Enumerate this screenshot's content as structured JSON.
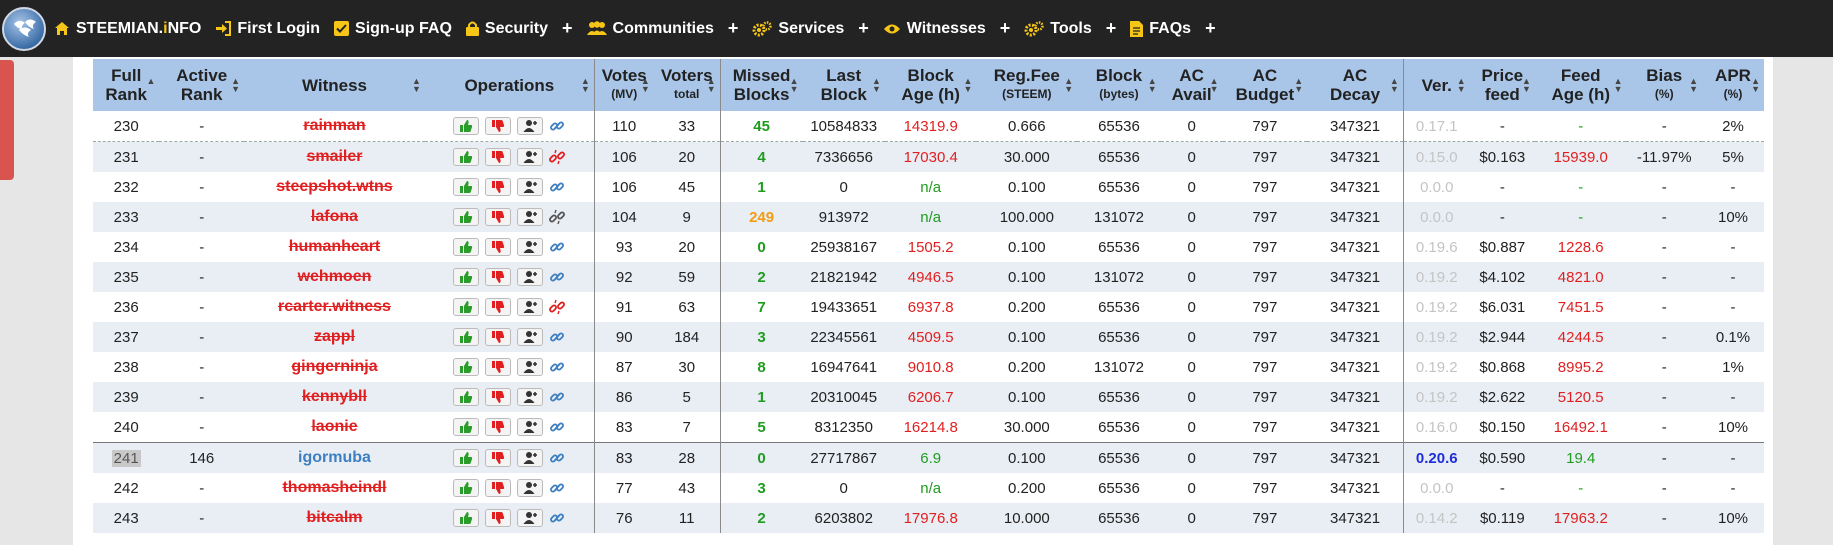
{
  "nav": {
    "brand": {
      "pre": "STEEMIAN.",
      "i": "i",
      "post": "NFO"
    },
    "items": [
      {
        "label": "First Login",
        "icon": "sign-in-icon"
      },
      {
        "label": "Sign-up FAQ",
        "icon": "checkbox-icon"
      },
      {
        "label": "Security",
        "icon": "lock-icon"
      },
      {
        "label": "Communities",
        "icon": "users-icon"
      },
      {
        "label": "Services",
        "icon": "gears-icon"
      },
      {
        "label": "Witnesses",
        "icon": "eye-icon"
      },
      {
        "label": "Tools",
        "icon": "gears-icon"
      },
      {
        "label": "FAQs",
        "icon": "document-icon"
      }
    ],
    "plus": "+"
  },
  "table": {
    "headers": [
      {
        "label": "Full",
        "label2": "Rank",
        "sub": ""
      },
      {
        "label": "Active",
        "label2": "Rank",
        "sub": ""
      },
      {
        "label": "Witness",
        "label2": "",
        "sub": ""
      },
      {
        "label": "Operations",
        "label2": "",
        "sub": ""
      },
      {
        "label": "Votes",
        "label2": "",
        "sub": "(MV)"
      },
      {
        "label": "Voters",
        "label2": "",
        "sub": "total"
      },
      {
        "label": "Missed",
        "label2": "Blocks",
        "sub": ""
      },
      {
        "label": "Last",
        "label2": "Block",
        "sub": ""
      },
      {
        "label": "Block",
        "label2": "Age (h)",
        "sub": ""
      },
      {
        "label": "Reg.Fee",
        "label2": "",
        "sub": "(STEEM)"
      },
      {
        "label": "Block",
        "label2": "",
        "sub": "(bytes)"
      },
      {
        "label": "AC",
        "label2": "Avail",
        "sub": ""
      },
      {
        "label": "AC",
        "label2": "Budget",
        "sub": ""
      },
      {
        "label": "AC",
        "label2": "Decay",
        "sub": ""
      },
      {
        "label": "Ver.",
        "label2": "",
        "sub": ""
      },
      {
        "label": "Price",
        "label2": "feed",
        "sub": ""
      },
      {
        "label": "Feed",
        "label2": "Age (h)",
        "sub": ""
      },
      {
        "label": "Bias",
        "label2": "",
        "sub": "(%)"
      },
      {
        "label": "APR",
        "label2": "",
        "sub": "(%)"
      }
    ],
    "rows": [
      {
        "rank": "230",
        "active": "-",
        "witness": "rainman",
        "link": "ok",
        "votes": "110",
        "voters": "33",
        "missed": "45",
        "missed_c": "green",
        "last": "10584833",
        "age": "14319.9",
        "age_c": "red",
        "fee": "0.666",
        "block": "65536",
        "avail": "0",
        "budget": "797",
        "decay": "347321",
        "ver": "0.17.1",
        "ver_c": "grey",
        "price": "-",
        "feed": "-",
        "feed_c": "green",
        "bias": "-",
        "apr": "2%"
      },
      {
        "rank": "231",
        "active": "-",
        "witness": "smailer",
        "link": "broken",
        "votes": "106",
        "voters": "20",
        "missed": "4",
        "missed_c": "green",
        "last": "7336656",
        "age": "17030.4",
        "age_c": "red",
        "fee": "30.000",
        "block": "65536",
        "avail": "0",
        "budget": "797",
        "decay": "347321",
        "ver": "0.15.0",
        "ver_c": "grey",
        "price": "$0.163",
        "feed": "15939.0",
        "feed_c": "red",
        "bias": "-11.97%",
        "apr": "5%"
      },
      {
        "rank": "232",
        "active": "-",
        "witness": "steepshot.wtns",
        "link": "ok",
        "votes": "106",
        "voters": "45",
        "missed": "1",
        "missed_c": "green",
        "last": "0",
        "age": "n/a",
        "age_c": "green",
        "fee": "0.100",
        "block": "65536",
        "avail": "0",
        "budget": "797",
        "decay": "347321",
        "ver": "0.0.0",
        "ver_c": "grey",
        "price": "-",
        "feed": "-",
        "feed_c": "green",
        "bias": "-",
        "apr": "-"
      },
      {
        "rank": "233",
        "active": "-",
        "witness": "lafona",
        "link": "broken-grey",
        "votes": "104",
        "voters": "9",
        "missed": "249",
        "missed_c": "orange",
        "last": "913972",
        "age": "n/a",
        "age_c": "green",
        "fee": "100.000",
        "block": "131072",
        "avail": "0",
        "budget": "797",
        "decay": "347321",
        "ver": "0.0.0",
        "ver_c": "grey",
        "price": "-",
        "feed": "-",
        "feed_c": "green",
        "bias": "-",
        "apr": "10%"
      },
      {
        "rank": "234",
        "active": "-",
        "witness": "humanheart",
        "link": "ok",
        "votes": "93",
        "voters": "20",
        "missed": "0",
        "missed_c": "green",
        "last": "25938167",
        "age": "1505.2",
        "age_c": "red",
        "fee": "0.100",
        "block": "65536",
        "avail": "0",
        "budget": "797",
        "decay": "347321",
        "ver": "0.19.6",
        "ver_c": "grey",
        "price": "$0.887",
        "feed": "1228.6",
        "feed_c": "red",
        "bias": "-",
        "apr": "-"
      },
      {
        "rank": "235",
        "active": "-",
        "witness": "wehmoen",
        "link": "ok",
        "votes": "92",
        "voters": "59",
        "missed": "2",
        "missed_c": "green",
        "last": "21821942",
        "age": "4946.5",
        "age_c": "red",
        "fee": "0.100",
        "block": "131072",
        "avail": "0",
        "budget": "797",
        "decay": "347321",
        "ver": "0.19.2",
        "ver_c": "grey",
        "price": "$4.102",
        "feed": "4821.0",
        "feed_c": "red",
        "bias": "-",
        "apr": "-"
      },
      {
        "rank": "236",
        "active": "-",
        "witness": "rcarter.witness",
        "link": "broken",
        "votes": "91",
        "voters": "63",
        "missed": "7",
        "missed_c": "green",
        "last": "19433651",
        "age": "6937.8",
        "age_c": "red",
        "fee": "0.200",
        "block": "65536",
        "avail": "0",
        "budget": "797",
        "decay": "347321",
        "ver": "0.19.2",
        "ver_c": "grey",
        "price": "$6.031",
        "feed": "7451.5",
        "feed_c": "red",
        "bias": "-",
        "apr": "-"
      },
      {
        "rank": "237",
        "active": "-",
        "witness": "zappl",
        "link": "ok",
        "votes": "90",
        "voters": "184",
        "missed": "3",
        "missed_c": "green",
        "last": "22345561",
        "age": "4509.5",
        "age_c": "red",
        "fee": "0.100",
        "block": "65536",
        "avail": "0",
        "budget": "797",
        "decay": "347321",
        "ver": "0.19.2",
        "ver_c": "grey",
        "price": "$2.944",
        "feed": "4244.5",
        "feed_c": "red",
        "bias": "-",
        "apr": "0.1%"
      },
      {
        "rank": "238",
        "active": "-",
        "witness": "gingerninja",
        "link": "ok",
        "votes": "87",
        "voters": "30",
        "missed": "8",
        "missed_c": "green",
        "last": "16947641",
        "age": "9010.8",
        "age_c": "red",
        "fee": "0.200",
        "block": "131072",
        "avail": "0",
        "budget": "797",
        "decay": "347321",
        "ver": "0.19.2",
        "ver_c": "grey",
        "price": "$0.868",
        "feed": "8995.2",
        "feed_c": "red",
        "bias": "-",
        "apr": "1%"
      },
      {
        "rank": "239",
        "active": "-",
        "witness": "kennybll",
        "link": "ok",
        "votes": "86",
        "voters": "5",
        "missed": "1",
        "missed_c": "green",
        "last": "20310045",
        "age": "6206.7",
        "age_c": "red",
        "fee": "0.100",
        "block": "65536",
        "avail": "0",
        "budget": "797",
        "decay": "347321",
        "ver": "0.19.2",
        "ver_c": "grey",
        "price": "$2.622",
        "feed": "5120.5",
        "feed_c": "red",
        "bias": "-",
        "apr": "-"
      },
      {
        "rank": "240",
        "active": "-",
        "witness": "laonie",
        "link": "ok",
        "votes": "83",
        "voters": "7",
        "missed": "5",
        "missed_c": "green",
        "last": "8312350",
        "age": "16214.8",
        "age_c": "red",
        "fee": "30.000",
        "block": "65536",
        "avail": "0",
        "budget": "797",
        "decay": "347321",
        "ver": "0.16.0",
        "ver_c": "grey",
        "price": "$0.150",
        "feed": "16492.1",
        "feed_c": "red",
        "bias": "-",
        "apr": "10%"
      },
      {
        "rank": "241",
        "active": "146",
        "witness": "igormuba",
        "link": "ok",
        "votes": "83",
        "voters": "28",
        "missed": "0",
        "missed_c": "green",
        "last": "27717867",
        "age": "6.9",
        "age_c": "green",
        "fee": "0.100",
        "block": "65536",
        "avail": "0",
        "budget": "797",
        "decay": "347321",
        "ver": "0.20.6",
        "ver_c": "blue",
        "price": "$0.590",
        "feed": "19.4",
        "feed_c": "green",
        "bias": "-",
        "apr": "-",
        "is_active": true
      },
      {
        "rank": "242",
        "active": "-",
        "witness": "thomasheindl",
        "link": "ok",
        "votes": "77",
        "voters": "43",
        "missed": "3",
        "missed_c": "green",
        "last": "0",
        "age": "n/a",
        "age_c": "green",
        "fee": "0.200",
        "block": "65536",
        "avail": "0",
        "budget": "797",
        "decay": "347321",
        "ver": "0.0.0",
        "ver_c": "grey",
        "price": "-",
        "feed": "-",
        "feed_c": "green",
        "bias": "-",
        "apr": "-"
      },
      {
        "rank": "243",
        "active": "-",
        "witness": "bitcalm",
        "link": "ok",
        "votes": "76",
        "voters": "11",
        "missed": "2",
        "missed_c": "green",
        "last": "6203802",
        "age": "17976.8",
        "age_c": "red",
        "fee": "10.000",
        "block": "65536",
        "avail": "0",
        "budget": "797",
        "decay": "347321",
        "ver": "0.14.2",
        "ver_c": "grey",
        "price": "$0.119",
        "feed": "17963.2",
        "feed_c": "red",
        "bias": "-",
        "apr": "10%"
      }
    ]
  },
  "colors": {
    "header_bg": "#a9c6e8",
    "navbar_bg": "#232323",
    "disabled_witness": "#e02020",
    "active_witness": "#3d7fc0",
    "good": "#1f9c1f",
    "bad": "#e02020",
    "warn": "#f39c12"
  }
}
